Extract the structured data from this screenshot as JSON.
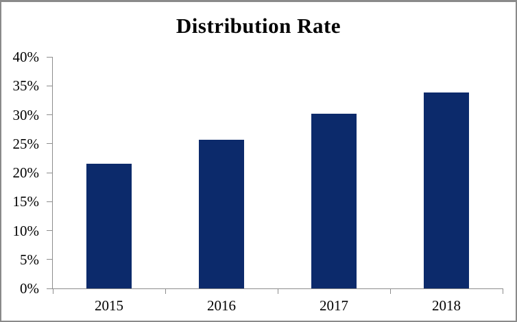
{
  "chart_data": {
    "type": "bar",
    "title": "Distribution Rate",
    "categories": [
      "2015",
      "2016",
      "2017",
      "2018"
    ],
    "values": [
      21.5,
      25.7,
      30.2,
      33.8
    ],
    "value_unit": "%",
    "xlabel": "",
    "ylabel": "",
    "y_tick_labels": [
      "0%",
      "5%",
      "10%",
      "15%",
      "20%",
      "25%",
      "30%",
      "35%",
      "40%"
    ],
    "ylim": [
      0,
      40
    ],
    "grid": false,
    "legend": "none",
    "bar_color": "#0c2a6b",
    "axis_color": "#8c8c8c",
    "text_color": "#000000",
    "frame_border_color": "#8a8a8a",
    "background_color": "#ffffff"
  }
}
